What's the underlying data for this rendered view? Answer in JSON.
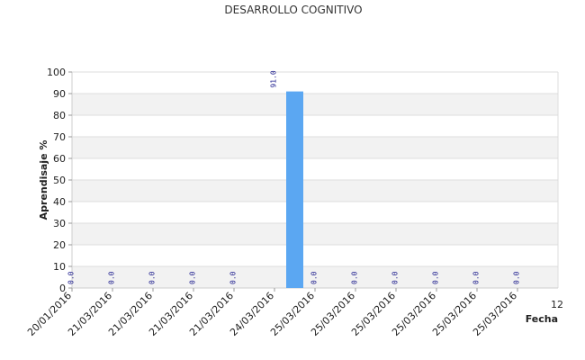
{
  "chart_data": {
    "type": "bar",
    "title": "DESARROLLO COGNITIVO",
    "ylabel": "Aprendisaje %",
    "xlabel": "Fecha",
    "ylim": [
      0,
      100
    ],
    "yticks": [
      0,
      10,
      20,
      30,
      40,
      50,
      60,
      70,
      80,
      90,
      100
    ],
    "categories": [
      "20/01/2016",
      "21/03/2016",
      "21/03/2016",
      "21/03/2016",
      "21/03/2016",
      "24/03/2016",
      "25/03/2016",
      "25/03/2016",
      "25/03/2016",
      "25/03/2016",
      "25/03/2016",
      "25/03/2016"
    ],
    "values": [
      0,
      0,
      0,
      0,
      0,
      91,
      0,
      0,
      0,
      0,
      0,
      0
    ],
    "value_labels": [
      "0.0",
      "0.0",
      "0.0",
      "0.0",
      "0.0",
      "91.0",
      "0.0",
      "0.0",
      "0.0",
      "0.0",
      "0.0",
      "0.0"
    ],
    "x_end_tick": "12",
    "bar_color": "#5ba7f2",
    "grid": true,
    "legend": "none"
  }
}
